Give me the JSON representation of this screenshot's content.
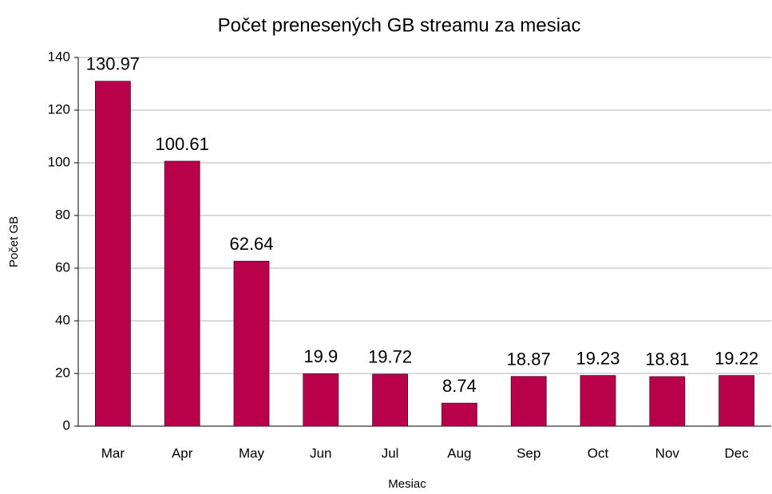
{
  "chart_data": {
    "type": "bar",
    "title": "Počet prenesených GB streamu za mesiac",
    "x_label": "Mesiac",
    "y_label": "Počet GB",
    "categories": [
      "Mar",
      "Apr",
      "May",
      "Jun",
      "Jul",
      "Aug",
      "Sep",
      "Oct",
      "Nov",
      "Dec"
    ],
    "values": [
      130.97,
      100.61,
      62.64,
      19.9,
      19.72,
      8.74,
      18.87,
      19.23,
      18.81,
      19.22
    ],
    "color": "#b8004b",
    "ylim": [
      0,
      140
    ],
    "yticks": [
      0,
      20,
      40,
      60,
      80,
      100,
      120,
      140
    ],
    "grid": true
  }
}
